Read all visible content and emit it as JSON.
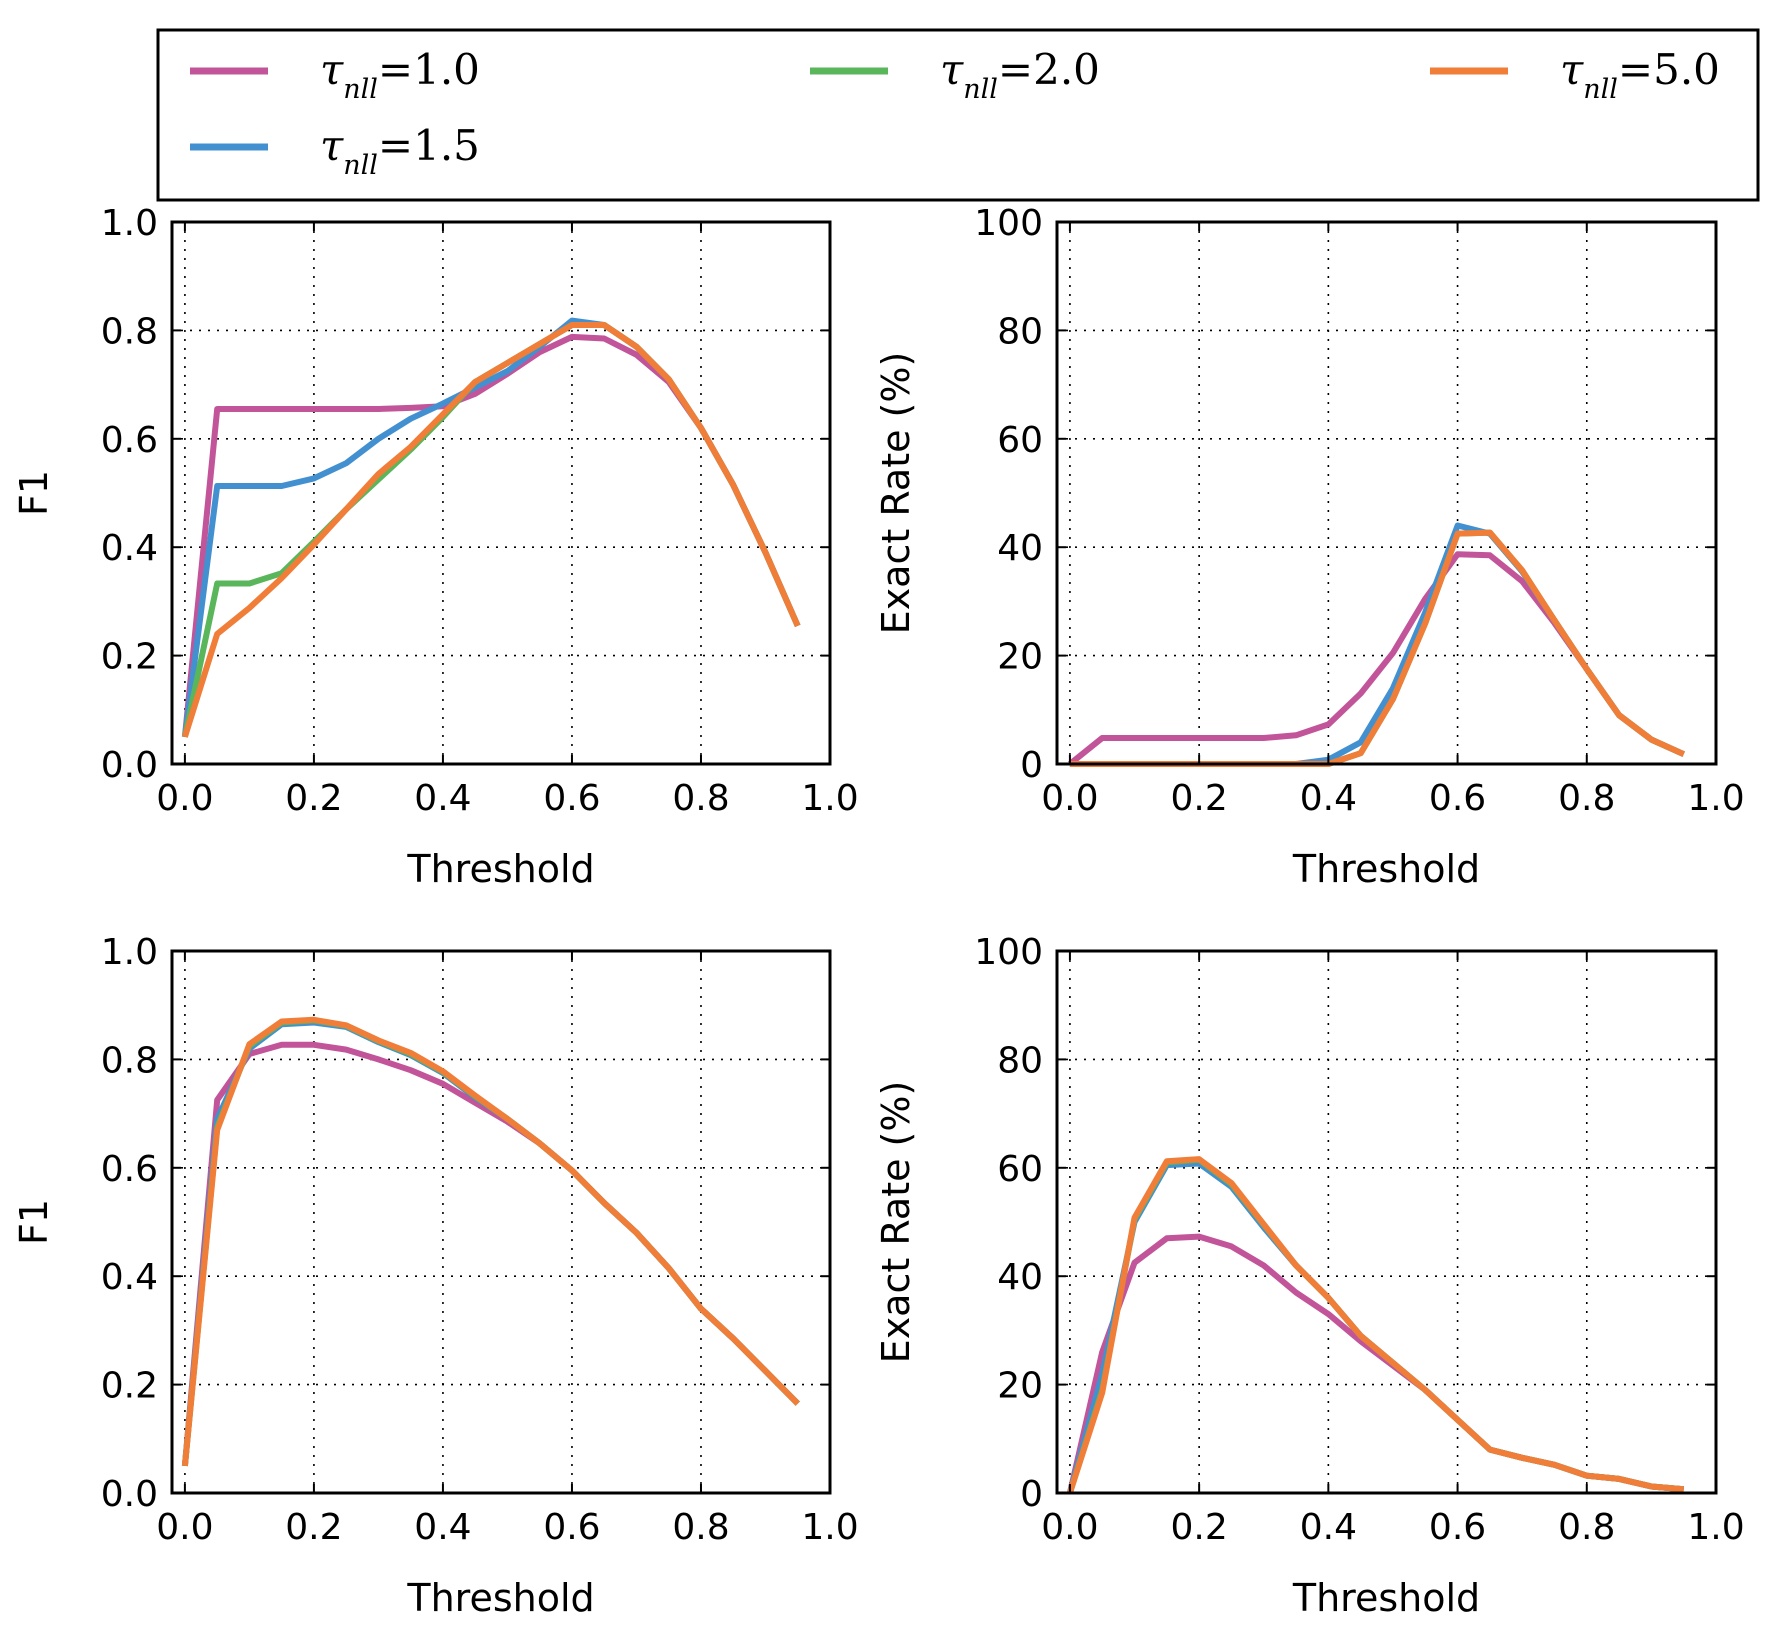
{
  "legend": {
    "entries": [
      {
        "symbol": "τ",
        "sub": "nll",
        "value": "=1.0",
        "color": "#c2549a"
      },
      {
        "symbol": "τ",
        "sub": "nll",
        "value": "=1.5",
        "color": "#4390d1"
      },
      {
        "symbol": "τ",
        "sub": "nll",
        "value": "=2.0",
        "color": "#5ab65b"
      },
      {
        "symbol": "τ",
        "sub": "nll",
        "value": "=5.0",
        "color": "#f07d38"
      }
    ]
  },
  "chart_data": [
    {
      "type": "line",
      "xlabel": "Threshold",
      "ylabel": "F1",
      "xlim": [
        -0.02,
        1.0
      ],
      "ylim": [
        0.0,
        1.0
      ],
      "xticks": [
        "0.0",
        "0.2",
        "0.4",
        "0.6",
        "0.8",
        "1.0"
      ],
      "yticks": [
        "0.0",
        "0.2",
        "0.4",
        "0.6",
        "0.8",
        "1.0"
      ],
      "grid": true,
      "x": [
        0.0,
        0.05,
        0.1,
        0.15,
        0.2,
        0.25,
        0.3,
        0.35,
        0.4,
        0.45,
        0.5,
        0.55,
        0.6,
        0.65,
        0.7,
        0.75,
        0.8,
        0.85,
        0.9,
        0.95
      ],
      "series": [
        {
          "name": "τnll=1.0",
          "values": [
            0.05,
            0.655,
            0.655,
            0.655,
            0.655,
            0.655,
            0.655,
            0.657,
            0.66,
            0.683,
            0.72,
            0.76,
            0.788,
            0.785,
            0.755,
            0.705,
            0.62,
            0.515,
            0.39,
            0.255
          ]
        },
        {
          "name": "τnll=1.5",
          "values": [
            0.05,
            0.513,
            0.513,
            0.513,
            0.527,
            0.555,
            0.6,
            0.637,
            0.665,
            0.695,
            0.725,
            0.77,
            0.818,
            0.81,
            0.77,
            0.71,
            0.62,
            0.515,
            0.39,
            0.255
          ]
        },
        {
          "name": "τnll=2.0",
          "values": [
            0.05,
            0.333,
            0.333,
            0.352,
            0.41,
            0.47,
            0.525,
            0.58,
            0.64,
            0.705,
            0.74,
            0.775,
            0.81,
            0.81,
            0.77,
            0.71,
            0.62,
            0.515,
            0.39,
            0.255
          ]
        },
        {
          "name": "τnll=5.0",
          "values": [
            0.05,
            0.24,
            0.288,
            0.343,
            0.405,
            0.47,
            0.535,
            0.585,
            0.645,
            0.705,
            0.74,
            0.775,
            0.81,
            0.81,
            0.77,
            0.71,
            0.62,
            0.515,
            0.39,
            0.255
          ]
        }
      ]
    },
    {
      "type": "line",
      "xlabel": "Threshold",
      "ylabel": "Exact Rate (%)",
      "xlim": [
        -0.02,
        1.0
      ],
      "ylim": [
        0,
        100
      ],
      "xticks": [
        "0.0",
        "0.2",
        "0.4",
        "0.6",
        "0.8",
        "1.0"
      ],
      "yticks": [
        "0",
        "20",
        "40",
        "60",
        "80",
        "100"
      ],
      "grid": true,
      "x": [
        0.0,
        0.05,
        0.1,
        0.15,
        0.2,
        0.25,
        0.3,
        0.35,
        0.4,
        0.45,
        0.5,
        0.55,
        0.6,
        0.65,
        0.7,
        0.75,
        0.8,
        0.85,
        0.9,
        0.95
      ],
      "series": [
        {
          "name": "τnll=1.0",
          "values": [
            0,
            4.8,
            4.8,
            4.8,
            4.8,
            4.8,
            4.8,
            5.3,
            7.3,
            13.0,
            20.5,
            30.5,
            38.7,
            38.5,
            33.7,
            26.0,
            17.5,
            9.0,
            4.5,
            1.8
          ]
        },
        {
          "name": "τnll=1.5",
          "values": [
            0,
            0,
            0,
            0,
            0,
            0,
            0,
            0,
            0.8,
            4.0,
            14.0,
            28.0,
            44.0,
            42.5,
            35.5,
            26.5,
            17.5,
            9.0,
            4.5,
            1.8
          ]
        },
        {
          "name": "τnll=2.0",
          "values": [
            0,
            0,
            0,
            0,
            0,
            0,
            0,
            0,
            0,
            2.0,
            12.0,
            26.0,
            42.5,
            42.7,
            35.7,
            26.5,
            17.5,
            9.0,
            4.5,
            1.8
          ]
        },
        {
          "name": "τnll=5.0",
          "values": [
            0,
            0,
            0,
            0,
            0,
            0,
            0,
            0,
            0,
            2.0,
            12.0,
            26.0,
            42.5,
            42.7,
            35.7,
            26.5,
            17.5,
            9.0,
            4.5,
            1.8
          ]
        }
      ]
    },
    {
      "type": "line",
      "xlabel": "Threshold",
      "ylabel": "F1",
      "xlim": [
        -0.02,
        1.0
      ],
      "ylim": [
        0.0,
        1.0
      ],
      "xticks": [
        "0.0",
        "0.2",
        "0.4",
        "0.6",
        "0.8",
        "1.0"
      ],
      "yticks": [
        "0.0",
        "0.2",
        "0.4",
        "0.6",
        "0.8",
        "1.0"
      ],
      "grid": true,
      "x": [
        0.0,
        0.05,
        0.1,
        0.15,
        0.2,
        0.25,
        0.3,
        0.35,
        0.4,
        0.45,
        0.5,
        0.55,
        0.6,
        0.65,
        0.7,
        0.75,
        0.8,
        0.85,
        0.9,
        0.95
      ],
      "series": [
        {
          "name": "τnll=1.0",
          "values": [
            0.05,
            0.725,
            0.81,
            0.827,
            0.827,
            0.818,
            0.8,
            0.78,
            0.755,
            0.72,
            0.685,
            0.645,
            0.595,
            0.535,
            0.48,
            0.415,
            0.34,
            0.285,
            0.225,
            0.165
          ]
        },
        {
          "name": "τnll=1.5",
          "values": [
            0.05,
            0.69,
            0.82,
            0.865,
            0.868,
            0.86,
            0.832,
            0.808,
            0.775,
            0.73,
            0.69,
            0.645,
            0.595,
            0.535,
            0.48,
            0.415,
            0.34,
            0.285,
            0.225,
            0.165
          ]
        },
        {
          "name": "τnll=2.0",
          "values": [
            0.05,
            0.675,
            0.825,
            0.868,
            0.872,
            0.862,
            0.834,
            0.81,
            0.777,
            0.732,
            0.69,
            0.645,
            0.595,
            0.535,
            0.48,
            0.415,
            0.34,
            0.285,
            0.225,
            0.165
          ]
        },
        {
          "name": "τnll=5.0",
          "values": [
            0.05,
            0.67,
            0.828,
            0.87,
            0.873,
            0.863,
            0.835,
            0.812,
            0.778,
            0.733,
            0.69,
            0.645,
            0.595,
            0.535,
            0.48,
            0.415,
            0.34,
            0.285,
            0.225,
            0.165
          ]
        }
      ]
    },
    {
      "type": "line",
      "xlabel": "Threshold",
      "ylabel": "Exact Rate (%)",
      "xlim": [
        -0.02,
        1.0
      ],
      "ylim": [
        0,
        100
      ],
      "xticks": [
        "0.0",
        "0.2",
        "0.4",
        "0.6",
        "0.8",
        "1.0"
      ],
      "yticks": [
        "0",
        "20",
        "40",
        "60",
        "80",
        "100"
      ],
      "grid": true,
      "x": [
        0.0,
        0.05,
        0.1,
        0.15,
        0.2,
        0.25,
        0.3,
        0.35,
        0.4,
        0.45,
        0.5,
        0.55,
        0.6,
        0.65,
        0.7,
        0.75,
        0.8,
        0.85,
        0.9,
        0.95
      ],
      "series": [
        {
          "name": "τnll=1.0",
          "values": [
            0,
            26.0,
            42.5,
            47.0,
            47.3,
            45.5,
            42.0,
            37.0,
            33.0,
            28.0,
            23.5,
            19.0,
            13.5,
            8.0,
            6.5,
            5.2,
            3.2,
            2.6,
            1.2,
            0.7
          ]
        },
        {
          "name": "τnll=1.5",
          "values": [
            0,
            22.0,
            50.0,
            60.5,
            60.8,
            56.5,
            49.0,
            42.0,
            36.0,
            29.0,
            24.0,
            19.0,
            13.5,
            8.0,
            6.5,
            5.2,
            3.2,
            2.6,
            1.2,
            0.7
          ]
        },
        {
          "name": "τnll=2.0",
          "values": [
            0,
            19.0,
            50.5,
            61.0,
            61.5,
            57.0,
            49.5,
            42.0,
            36.0,
            29.0,
            24.0,
            19.0,
            13.5,
            8.0,
            6.5,
            5.2,
            3.2,
            2.6,
            1.2,
            0.7
          ]
        },
        {
          "name": "τnll=5.0",
          "values": [
            0,
            18.5,
            50.8,
            61.2,
            61.6,
            57.2,
            49.6,
            42.0,
            36.0,
            29.0,
            24.0,
            19.0,
            13.5,
            8.0,
            6.5,
            5.2,
            3.2,
            2.6,
            1.2,
            0.7
          ]
        }
      ]
    }
  ]
}
